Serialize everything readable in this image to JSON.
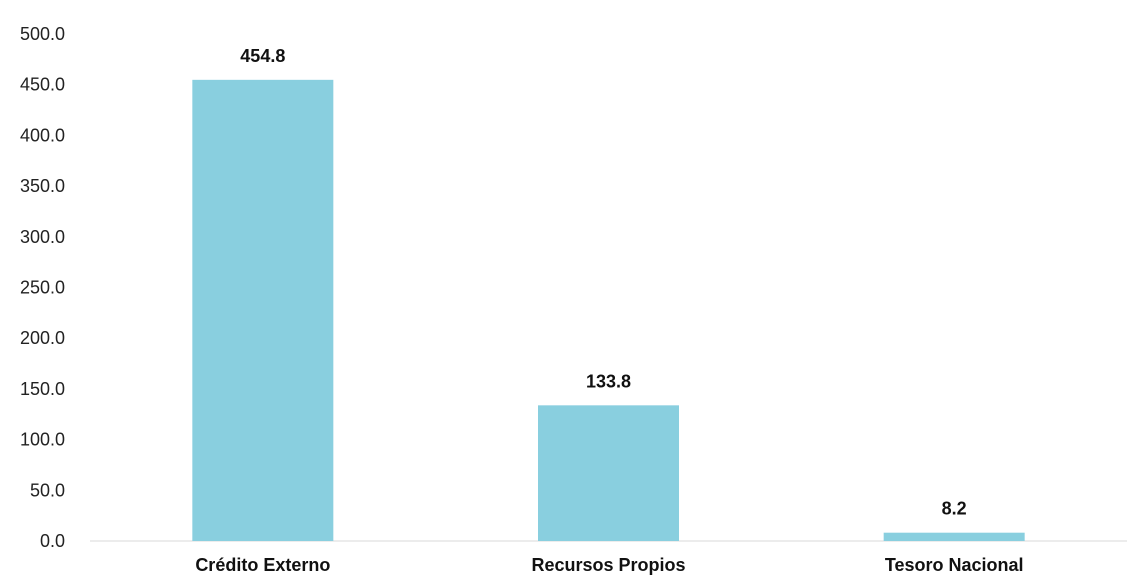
{
  "chart_data": {
    "type": "bar",
    "categories": [
      "Crédito Externo",
      "Recursos Propios",
      "Tesoro Nacional"
    ],
    "values": [
      454.8,
      133.8,
      8.2
    ],
    "data_labels": [
      "454.8",
      "133.8",
      "8.2"
    ],
    "ylim": [
      0,
      500
    ],
    "yticks": [
      0,
      50,
      100,
      150,
      200,
      250,
      300,
      350,
      400,
      450,
      500
    ],
    "ytick_labels": [
      "0.0",
      "50.0",
      "100.0",
      "150.0",
      "200.0",
      "250.0",
      "300.0",
      "350.0",
      "400.0",
      "450.0",
      "500.0"
    ],
    "title": "",
    "xlabel": "",
    "ylabel": "",
    "grid": false,
    "legend": "none",
    "bar_color": "#89CFDF",
    "axis_color": "#D9D9D9"
  }
}
